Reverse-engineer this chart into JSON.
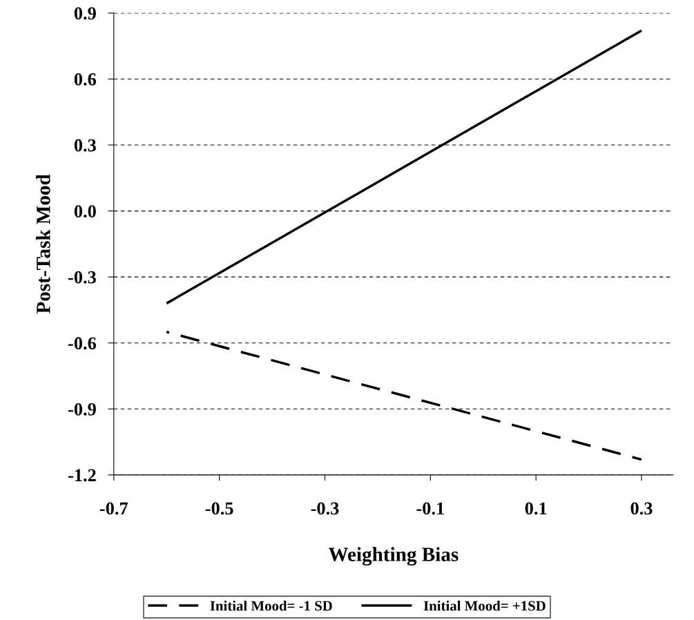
{
  "chart_data": {
    "type": "line",
    "xlabel": "Weighting Bias",
    "ylabel": "Post-Task Mood",
    "x": [
      -0.6,
      0.3
    ],
    "series": [
      {
        "name": "Initial Mood= -1 SD",
        "color": "#000000",
        "values": [
          -0.55,
          -1.13
        ],
        "line_style": "dashed"
      },
      {
        "name": "Initial Mood= +1SD",
        "color": "#000000",
        "values": [
          -0.42,
          0.82
        ],
        "line_style": "solid"
      }
    ],
    "xlim": [
      -0.7,
      0.36
    ],
    "xticks": [
      -0.7,
      -0.5,
      -0.3,
      -0.1,
      0.1,
      0.3
    ],
    "ylim": [
      -1.2,
      0.9
    ],
    "yticks": [
      {
        "value": -1.2,
        "label": "-1.2"
      },
      {
        "value": -0.9,
        "label": "-0.9"
      },
      {
        "value": -0.6,
        "label": "-0.6"
      },
      {
        "value": -0.3,
        "label": "-0.3"
      },
      {
        "value": 0,
        "label": "0.0"
      },
      {
        "value": 0.3,
        "label": "0.3"
      },
      {
        "value": 0.6,
        "label": "0.6"
      },
      {
        "value": 0.9,
        "label": "0.9"
      }
    ],
    "grid": "y",
    "legend": "bottom",
    "marker": "none"
  }
}
